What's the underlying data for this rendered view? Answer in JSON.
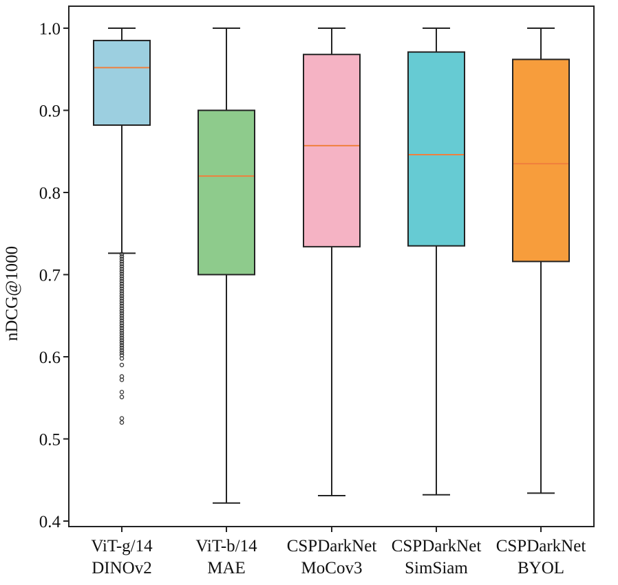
{
  "chart_data": {
    "type": "boxplot",
    "ylabel": "nDCG@1000",
    "xlabel": "",
    "ylim": [
      0.4,
      1.03
    ],
    "yticks": [
      0.4,
      0.5,
      0.6,
      0.7,
      0.8,
      0.9,
      1.0
    ],
    "ytick_labels": [
      "0.4",
      "0.5",
      "0.6",
      "0.7",
      "0.8",
      "0.9",
      "1.0"
    ],
    "grid": false,
    "median_color": "#f07f3c",
    "series": [
      {
        "label_line1": "ViT-g/14",
        "label_line2": "DINOv2",
        "color": "#9ccfe0",
        "whisker_low": 0.726,
        "q1": 0.882,
        "median": 0.952,
        "q3": 0.985,
        "whisker_high": 1.0,
        "outliers": [
          0.725,
          0.722,
          0.719,
          0.716,
          0.713,
          0.71,
          0.707,
          0.704,
          0.701,
          0.698,
          0.695,
          0.692,
          0.689,
          0.686,
          0.683,
          0.68,
          0.677,
          0.674,
          0.671,
          0.668,
          0.665,
          0.662,
          0.659,
          0.656,
          0.653,
          0.65,
          0.647,
          0.644,
          0.641,
          0.638,
          0.635,
          0.632,
          0.629,
          0.626,
          0.623,
          0.62,
          0.617,
          0.614,
          0.611,
          0.608,
          0.605,
          0.602,
          0.598,
          0.59,
          0.576,
          0.572,
          0.557,
          0.551,
          0.525,
          0.52
        ]
      },
      {
        "label_line1": "ViT-b/14",
        "label_line2": "MAE",
        "color": "#8ecb8c",
        "whisker_low": 0.422,
        "q1": 0.7,
        "median": 0.82,
        "q3": 0.9,
        "whisker_high": 1.0,
        "outliers": []
      },
      {
        "label_line1": "CSPDarkNet",
        "label_line2": "MoCov3",
        "color": "#f5b3c4",
        "whisker_low": 0.431,
        "q1": 0.734,
        "median": 0.857,
        "q3": 0.968,
        "whisker_high": 1.0,
        "outliers": []
      },
      {
        "label_line1": "CSPDarkNet",
        "label_line2": "SimSiam",
        "color": "#66cbd3",
        "whisker_low": 0.432,
        "q1": 0.735,
        "median": 0.846,
        "q3": 0.971,
        "whisker_high": 1.0,
        "outliers": []
      },
      {
        "label_line1": "CSPDarkNet",
        "label_line2": "BYOL",
        "color": "#f79d3c",
        "whisker_low": 0.434,
        "q1": 0.716,
        "median": 0.835,
        "q3": 0.962,
        "whisker_high": 1.0,
        "outliers": []
      }
    ]
  }
}
